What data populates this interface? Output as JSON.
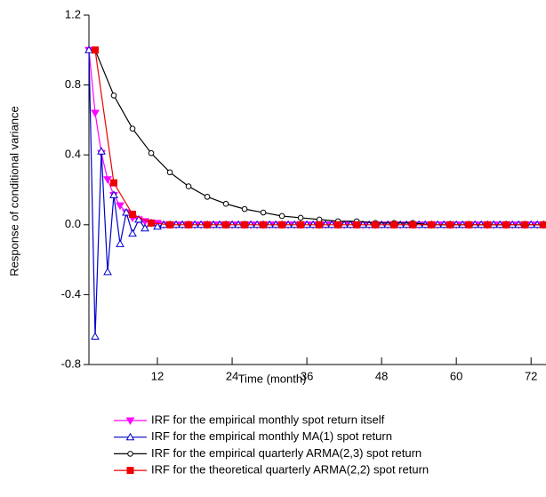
{
  "chart_data": {
    "type": "line",
    "x_label": "Time (month)",
    "y_label": "Response of conditional variance",
    "xlim": [
      1,
      74.4
    ],
    "ylim": [
      -0.8,
      1.2
    ],
    "xticks": [
      12,
      24,
      36,
      48,
      60,
      72
    ],
    "yticks": [
      1.2,
      0.8,
      0.4,
      {
        "value": 0,
        "label": "0.0"
      },
      -0.4,
      -0.8
    ],
    "series": [
      {
        "name": "IRF for the empirical monthly spot return itself",
        "color": "#ff00ff",
        "marker": "triangle-down-filled",
        "x": [
          1,
          2,
          3,
          4,
          5,
          6,
          7,
          8,
          9,
          10,
          11,
          12,
          13,
          14,
          15,
          16,
          17,
          18,
          19,
          20,
          21,
          22,
          23,
          24,
          25,
          26,
          27,
          28,
          29,
          30,
          31,
          32,
          33,
          34,
          35,
          36,
          37,
          38,
          39,
          40,
          41,
          42,
          43,
          44,
          45,
          46,
          47,
          48,
          49,
          50,
          51,
          52,
          53,
          54,
          55,
          56,
          57,
          58,
          59,
          60,
          61,
          62,
          63,
          64,
          65,
          66,
          67,
          68,
          69,
          70,
          71,
          72,
          73,
          74
        ],
        "values": [
          1,
          0.64,
          0.41,
          0.26,
          0.17,
          0.11,
          0.07,
          0.04,
          0.03,
          0.02,
          0.01,
          0.01,
          0,
          0,
          0,
          0,
          0,
          0,
          0,
          0,
          0,
          0,
          0,
          0,
          0,
          0,
          0,
          0,
          0,
          0,
          0,
          0,
          0,
          0,
          0,
          0,
          0,
          0,
          0,
          0,
          0,
          0,
          0,
          0,
          0,
          0,
          0,
          0,
          0,
          0,
          0,
          0,
          0,
          0,
          0,
          0,
          0,
          0,
          0,
          0,
          0,
          0,
          0,
          0,
          0,
          0,
          0,
          0,
          0,
          0,
          0,
          0,
          0,
          0
        ]
      },
      {
        "name": "IRF for the empirical monthly MA(1) spot return",
        "color": "#0000cc",
        "marker": "triangle-open",
        "x": [
          1,
          2,
          3,
          4,
          5,
          6,
          7,
          8,
          9,
          10,
          11,
          12,
          13,
          14,
          15,
          16,
          17,
          18,
          19,
          20,
          21,
          22,
          23,
          24,
          25,
          26,
          27,
          28,
          29,
          30,
          31,
          32,
          33,
          34,
          35,
          36,
          37,
          38,
          39,
          40,
          41,
          42,
          43,
          44,
          45,
          46,
          47,
          48,
          49,
          50,
          51,
          52,
          53,
          54,
          55,
          56,
          57,
          58,
          59,
          60,
          61,
          62,
          63,
          64,
          65,
          66,
          67,
          68,
          69,
          70,
          71,
          72,
          73,
          74
        ],
        "values": [
          1,
          -0.64,
          0.42,
          -0.27,
          0.17,
          -0.11,
          0.07,
          -0.05,
          0.03,
          -0.02,
          0.01,
          -0.01,
          0,
          0,
          0,
          0,
          0,
          0,
          0,
          0,
          0,
          0,
          0,
          0,
          0,
          0,
          0,
          0,
          0,
          0,
          0,
          0,
          0,
          0,
          0,
          0,
          0,
          0,
          0,
          0,
          0,
          0,
          0,
          0,
          0,
          0,
          0,
          0,
          0,
          0,
          0,
          0,
          0,
          0,
          0,
          0,
          0,
          0,
          0,
          0,
          0,
          0,
          0,
          0,
          0,
          0,
          0,
          0,
          0,
          0,
          0,
          0,
          0,
          0
        ]
      },
      {
        "name": "IRF for the empirical quarterly ARMA(2,3) spot return",
        "color": "#000000",
        "marker": "circle-open",
        "x": [
          2,
          5,
          8,
          11,
          14,
          17,
          20,
          23,
          26,
          29,
          32,
          35,
          38,
          41,
          44,
          47,
          50,
          53,
          56,
          59,
          62,
          65,
          68,
          71,
          74
        ],
        "values": [
          1,
          0.74,
          0.55,
          0.41,
          0.3,
          0.22,
          0.16,
          0.12,
          0.09,
          0.07,
          0.05,
          0.04,
          0.03,
          0.02,
          0.02,
          0.01,
          0.01,
          0.01,
          0,
          0,
          0,
          0,
          0,
          0,
          0
        ]
      },
      {
        "name": "IRF for the theoretical quarterly ARMA(2,2) spot return",
        "color": "#ee0000",
        "marker": "square-filled",
        "x": [
          2,
          5,
          8,
          11,
          14,
          17,
          20,
          23,
          26,
          29,
          32,
          35,
          38,
          41,
          44,
          47,
          50,
          53,
          56,
          59,
          62,
          65,
          68,
          71,
          74
        ],
        "values": [
          1,
          0.24,
          0.06,
          0.01,
          0,
          0,
          0,
          0,
          0,
          0,
          0,
          0,
          0,
          0,
          0,
          0,
          0,
          0,
          0,
          0,
          0,
          0,
          0,
          0,
          0
        ]
      }
    ]
  }
}
